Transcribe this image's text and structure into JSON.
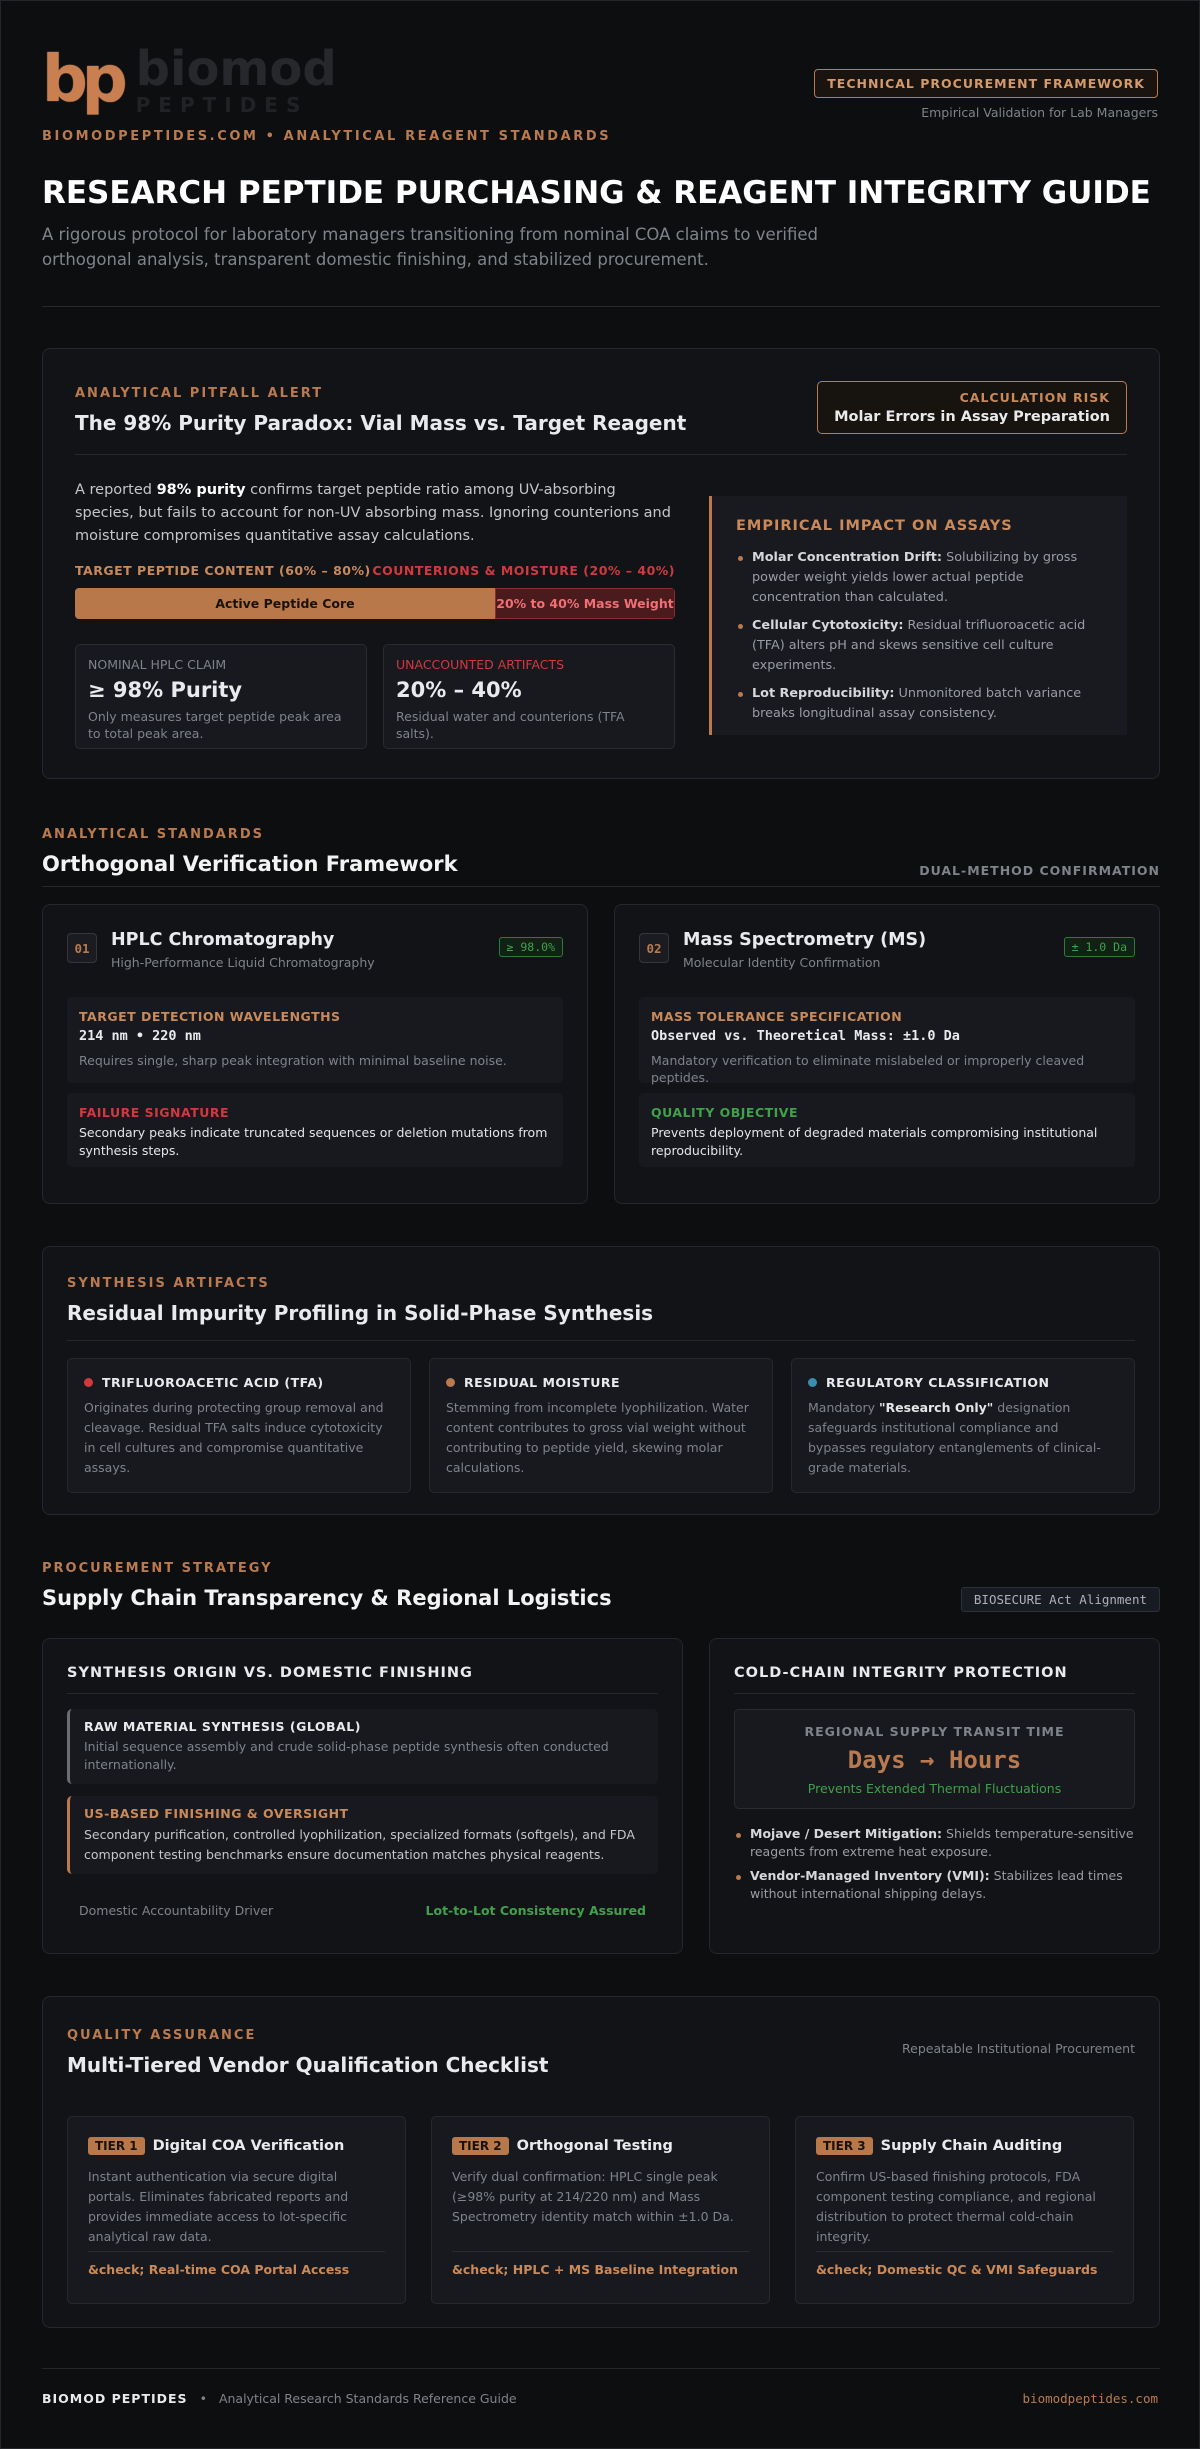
{
  "header": {
    "logo_mark": "bp",
    "logo_name": "biomod",
    "logo_sub": "PEPTIDES",
    "tagline": "BIOMODPEPTIDES.COM • ANALYTICAL REAGENT STANDARDS",
    "badge": "TECHNICAL PROCUREMENT FRAMEWORK",
    "badge_note": "Empirical Validation for Lab Managers",
    "title": "RESEARCH PEPTIDE PURCHASING & REAGENT INTEGRITY GUIDE",
    "subtitle": "A rigorous protocol for laboratory managers transitioning from nominal COA claims to verified orthogonal analysis, transparent domestic finishing, and stabilized procurement."
  },
  "pitfall": {
    "eyebrow": "ANALYTICAL PITFALL ALERT",
    "heading": "The 98% Purity Paradox: Vial Mass vs. Target Reagent",
    "risk_label": "CALCULATION RISK",
    "risk_text": "Molar Errors in Assay Preparation",
    "intro": [
      "A reported ",
      "98% purity",
      " confirms target peptide ratio among UV-absorbing species, but fails to account for non-UV absorbing mass. Ignoring counterions and moisture compromises quantitative assay calculations."
    ],
    "bar_left_label": "TARGET PEPTIDE CONTENT (60% – 80%)",
    "bar_right_label": "COUNTERIONS & MOISTURE (20% – 40%)",
    "bar_core": "Active Peptide Core",
    "bar_rest": "20% to 40% Mass Weight",
    "stats": [
      {
        "label": "NOMINAL HPLC CLAIM",
        "value": "≥ 98% Purity",
        "note": "Only measures target peptide peak area to total peak area."
      },
      {
        "label": "UNACCOUNTED ARTIFACTS",
        "value": "20% – 40%",
        "note": "Residual water and counterions (TFA salts)."
      }
    ],
    "impact_title": "EMPIRICAL IMPACT ON ASSAYS",
    "impacts": [
      {
        "term": "Molar Concentration Drift:",
        "text": " Solubilizing by gross powder weight yields lower actual peptide concentration than calculated."
      },
      {
        "term": "Cellular Cytotoxicity:",
        "text": " Residual trifluoroacetic acid (TFA) alters pH and skews sensitive cell culture experiments."
      },
      {
        "term": "Lot Reproducibility:",
        "text": " Unmonitored batch variance breaks longitudinal assay consistency."
      }
    ]
  },
  "orthogonal": {
    "eyebrow": "ANALYTICAL STANDARDS",
    "heading": "Orthogonal Verification Framework",
    "tag": "DUAL-METHOD CONFIRMATION",
    "methods": [
      {
        "num": "01",
        "name": "HPLC Chromatography",
        "sub": "High-Performance Liquid Chromatography",
        "badge": "≥ 98.0%",
        "spec_label": "TARGET DETECTION WAVELENGTHS",
        "spec_value": "214 nm • 220 nm",
        "spec_note": "Requires single, sharp peak integration with minimal baseline noise.",
        "outcome_label": "FAILURE SIGNATURE",
        "outcome_text": "Secondary peaks indicate truncated sequences or deletion mutations from synthesis steps."
      },
      {
        "num": "02",
        "name": "Mass Spectrometry (MS)",
        "sub": "Molecular Identity Confirmation",
        "badge": "± 1.0 Da",
        "spec_label": "MASS TOLERANCE SPECIFICATION",
        "spec_value": "Observed vs. Theoretical Mass: ±1.0 Da",
        "spec_note": "Mandatory verification to eliminate mislabeled or improperly cleaved peptides.",
        "outcome_label": "QUALITY OBJECTIVE",
        "outcome_text": "Prevents deployment of degraded materials compromising institutional reproducibility."
      }
    ]
  },
  "impurities": {
    "eyebrow": "SYNTHESIS ARTIFACTS",
    "heading": "Residual Impurity Profiling in Solid-Phase Synthesis",
    "items": [
      {
        "title": "TRIFLUOROACETIC ACID (TFA)",
        "text": [
          "Originates during protecting group removal and cleavage. Residual TFA salts induce cytotoxicity in cell cultures and compromise quantitative assays."
        ]
      },
      {
        "title": "RESIDUAL MOISTURE",
        "text": [
          "Stemming from incomplete lyophilization. Water content contributes to gross vial weight without contributing to peptide yield, skewing molar calculations."
        ]
      },
      {
        "title": "REGULATORY CLASSIFICATION",
        "text": [
          "Mandatory ",
          "\"Research Only\"",
          " designation safeguards institutional compliance and bypasses regulatory entanglements of clinical-grade materials."
        ]
      }
    ]
  },
  "procurement": {
    "eyebrow": "PROCUREMENT STRATEGY",
    "heading": "Supply Chain Transparency & Regional Logistics",
    "tag": "BIOSECURE Act Alignment",
    "origin": {
      "title": "SYNTHESIS ORIGIN VS. DOMESTIC FINISHING",
      "steps": [
        {
          "title": "RAW MATERIAL SYNTHESIS (GLOBAL)",
          "text": "Initial sequence assembly and crude solid-phase peptide synthesis often conducted internationally."
        },
        {
          "title": "US-BASED FINISHING & OVERSIGHT",
          "text": "Secondary purification, controlled lyophilization, specialized formats (softgels), and FDA component testing benchmarks ensure documentation matches physical reagents."
        }
      ],
      "driver": "Domestic Accountability Driver",
      "driver_result": "Lot-to-Lot Consistency Assured"
    },
    "cold": {
      "title": "COLD-CHAIN INTEGRITY PROTECTION",
      "transit_label": "REGIONAL SUPPLY TRANSIT TIME",
      "transit_value": "Days → Hours",
      "transit_note": "Prevents Extended Thermal Fluctuations",
      "points": [
        {
          "term": "Mojave / Desert Mitigation:",
          "text": " Shields temperature-sensitive reagents from extreme heat exposure."
        },
        {
          "term": "Vendor-Managed Inventory (VMI):",
          "text": " Stabilizes lead times without international shipping delays."
        }
      ]
    }
  },
  "checklist": {
    "eyebrow": "QUALITY ASSURANCE",
    "heading": "Multi-Tiered Vendor Qualification Checklist",
    "tag": "Repeatable Institutional Procurement",
    "tiers": [
      {
        "tier": "TIER 1",
        "title": "Digital COA Verification",
        "text": "Instant authentication via secure digital portals. Eliminates fabricated reports and provides immediate access to lot-specific analytical raw data.",
        "check": "&check; Real-time COA Portal Access"
      },
      {
        "tier": "TIER 2",
        "title": "Orthogonal Testing",
        "text": "Verify dual confirmation: HPLC single peak (≥98% purity at 214/220 nm) and Mass Spectrometry identity match within ±1.0 Da.",
        "check": "&check; HPLC + MS Baseline Integration"
      },
      {
        "tier": "TIER 3",
        "title": "Supply Chain Auditing",
        "text": "Confirm US-based finishing protocols, FDA component testing compliance, and regional distribution to protect thermal cold-chain integrity.",
        "check": "&check; Domestic QC & VMI Safeguards"
      }
    ]
  },
  "footer": {
    "brand": "BIOMOD PEPTIDES",
    "sep": "•",
    "note": "Analytical Research Standards Reference Guide",
    "url": "biomodpeptides.com"
  }
}
